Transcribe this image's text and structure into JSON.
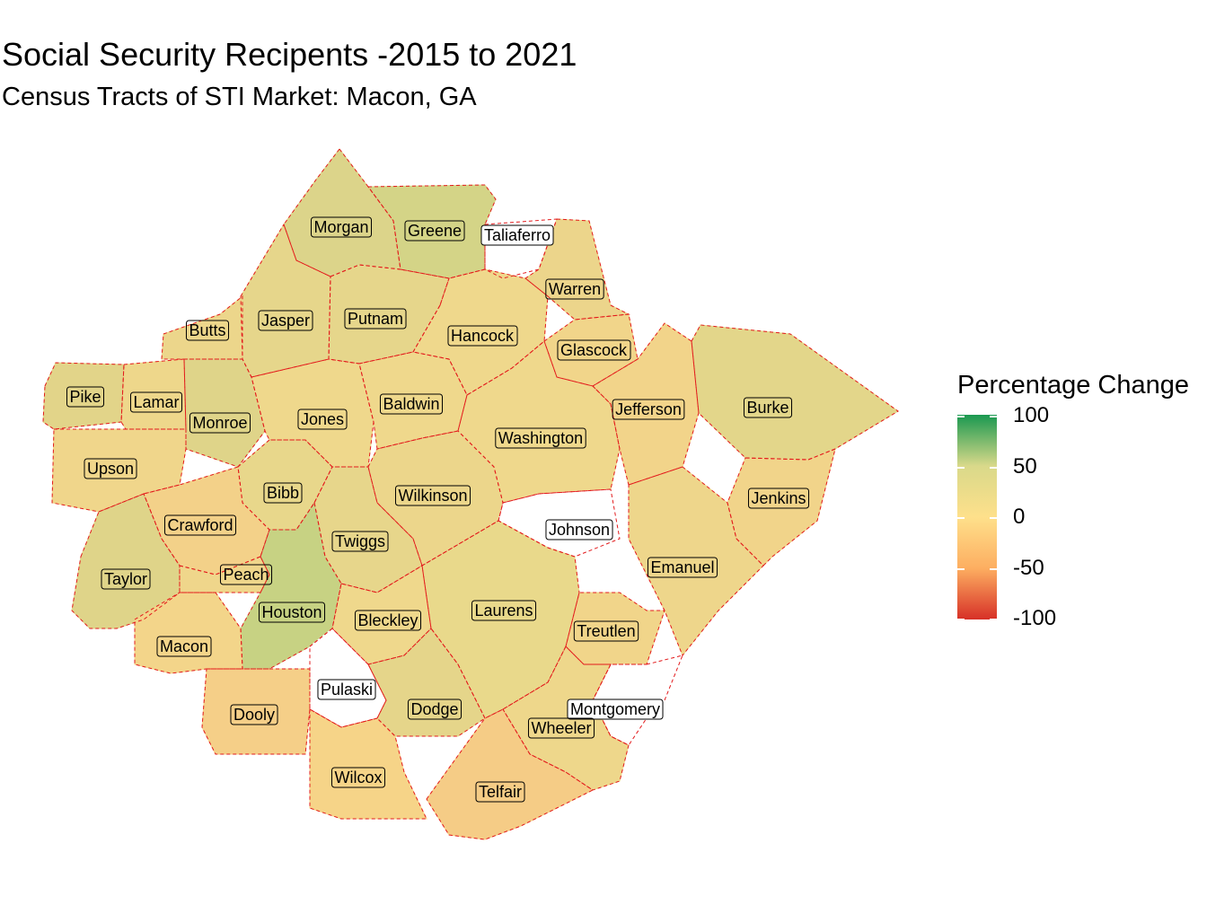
{
  "title": "Social Security Recipents -2015 to 2021",
  "subtitle": "Census Tracts of STI Market: Macon, GA",
  "legend": {
    "title": "Percentage Change",
    "ticks": [
      "100",
      "50",
      "0",
      "-50",
      "-100"
    ],
    "colors": [
      "#1a9850",
      "#d9d98a",
      "#fee08b",
      "#fdae61",
      "#d73027"
    ]
  },
  "boundary_color": "#e31a1c",
  "counties": [
    {
      "name": "Morgan",
      "fill": "#dcd48a"
    },
    {
      "name": "Greene",
      "fill": "#d4d487"
    },
    {
      "name": "Taliaferro",
      "fill": "#ffffff"
    },
    {
      "name": "Warren",
      "fill": "#ecd58b"
    },
    {
      "name": "Putnam",
      "fill": "#e6d68b"
    },
    {
      "name": "Jasper",
      "fill": "#e6d68b"
    },
    {
      "name": "Butts",
      "fill": "#ecd68b"
    },
    {
      "name": "Hancock",
      "fill": "#efd88c"
    },
    {
      "name": "Glascock",
      "fill": "#f1d58a"
    },
    {
      "name": "Pike",
      "fill": "#e2d489"
    },
    {
      "name": "Lamar",
      "fill": "#eed78b"
    },
    {
      "name": "Monroe",
      "fill": "#dfd489"
    },
    {
      "name": "Jones",
      "fill": "#efd88c"
    },
    {
      "name": "Baldwin",
      "fill": "#efd88c"
    },
    {
      "name": "Jefferson",
      "fill": "#f2d48a"
    },
    {
      "name": "Burke",
      "fill": "#e3d68a"
    },
    {
      "name": "Washington",
      "fill": "#efd88c"
    },
    {
      "name": "Upson",
      "fill": "#f0d68b"
    },
    {
      "name": "Bibb",
      "fill": "#e8d78b"
    },
    {
      "name": "Wilkinson",
      "fill": "#ecd68b"
    },
    {
      "name": "Jenkins",
      "fill": "#f1d48a"
    },
    {
      "name": "Crawford",
      "fill": "#f3d189"
    },
    {
      "name": "Twiggs",
      "fill": "#e7d68b"
    },
    {
      "name": "Johnson",
      "fill": "#ffffff"
    },
    {
      "name": "Taylor",
      "fill": "#dfd489"
    },
    {
      "name": "Peach",
      "fill": "#efd68b"
    },
    {
      "name": "Emanuel",
      "fill": "#eed68b"
    },
    {
      "name": "Houston",
      "fill": "#c7d283"
    },
    {
      "name": "Laurens",
      "fill": "#e9d98b"
    },
    {
      "name": "Bleckley",
      "fill": "#efd88c"
    },
    {
      "name": "Macon",
      "fill": "#f3d58a"
    },
    {
      "name": "Treutlen",
      "fill": "#f1d58a"
    },
    {
      "name": "Pulaski",
      "fill": "#ffffff"
    },
    {
      "name": "Dooly",
      "fill": "#f5cf88"
    },
    {
      "name": "Dodge",
      "fill": "#e5d58a"
    },
    {
      "name": "Montgomery",
      "fill": "#ffffff"
    },
    {
      "name": "Wheeler",
      "fill": "#eed78b"
    },
    {
      "name": "Wilcox",
      "fill": "#f6d488"
    },
    {
      "name": "Telfair",
      "fill": "#f5cc86"
    }
  ]
}
